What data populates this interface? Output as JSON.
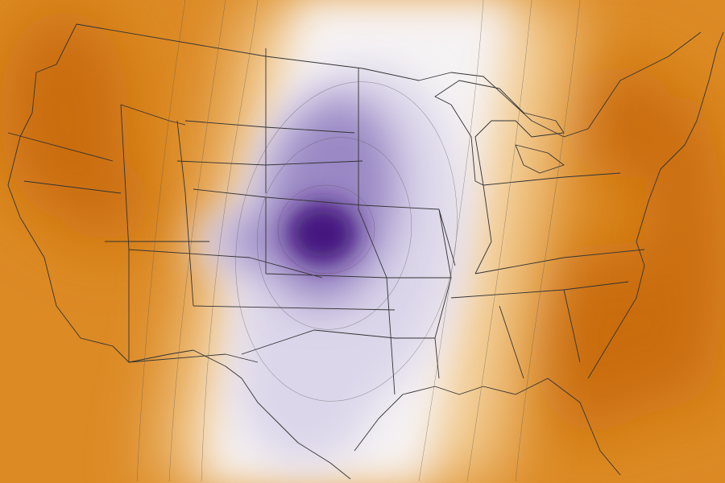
{
  "map": {
    "region": "contiguous-united-states",
    "layer": "temperature-anomaly",
    "colors": {
      "warm_dark": "#c96c0c",
      "warm": "#dc8a24",
      "warm_light": "#f3cf98",
      "neutral": "#f6f3f4",
      "cool_light": "#dcd6ea",
      "cool": "#9a88c4",
      "cool_dark": "#45127f",
      "boundary": "#333333",
      "contour": "#555555"
    }
  }
}
